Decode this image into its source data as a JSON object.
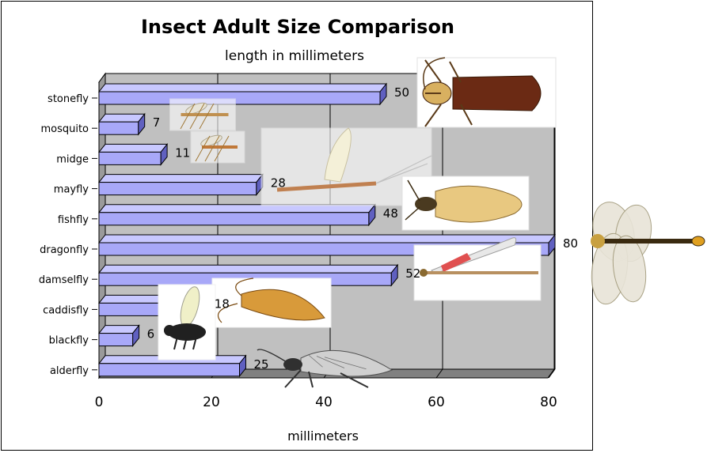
{
  "chart_data": {
    "type": "bar",
    "orientation": "horizontal",
    "title": "Insect Adult Size Comparison",
    "subtitle": "length in millimeters",
    "xlabel": "millimeters",
    "ylabel": "",
    "xlim": [
      0,
      80
    ],
    "xticks": [
      "0",
      "20",
      "40",
      "60",
      "80"
    ],
    "grid": true,
    "categories": [
      "stonefly",
      "mosquito",
      "midge",
      "mayfly",
      "fishfly",
      "dragonfly",
      "damselfly",
      "caddisfly",
      "blackfly",
      "alderfly"
    ],
    "values": [
      50,
      7,
      11,
      28,
      48,
      80,
      52,
      18,
      6,
      25
    ],
    "value_labels": [
      "50",
      "7",
      "11",
      "28",
      "48",
      "80",
      "52",
      "18",
      "6",
      "25"
    ],
    "bar_color": "#a8a8f8",
    "bar_top_color": "#c8c8ff",
    "bar_side_color": "#6060c0",
    "plot_background": "#c0c0c0",
    "images": [
      "stonefly-image",
      "mosquito-image",
      "midge-image",
      "mayfly-image",
      "fishfly-image",
      "dragonfly-image",
      "damselfly-image",
      "caddisfly-image",
      "blackfly-image",
      "alderfly-image"
    ]
  }
}
